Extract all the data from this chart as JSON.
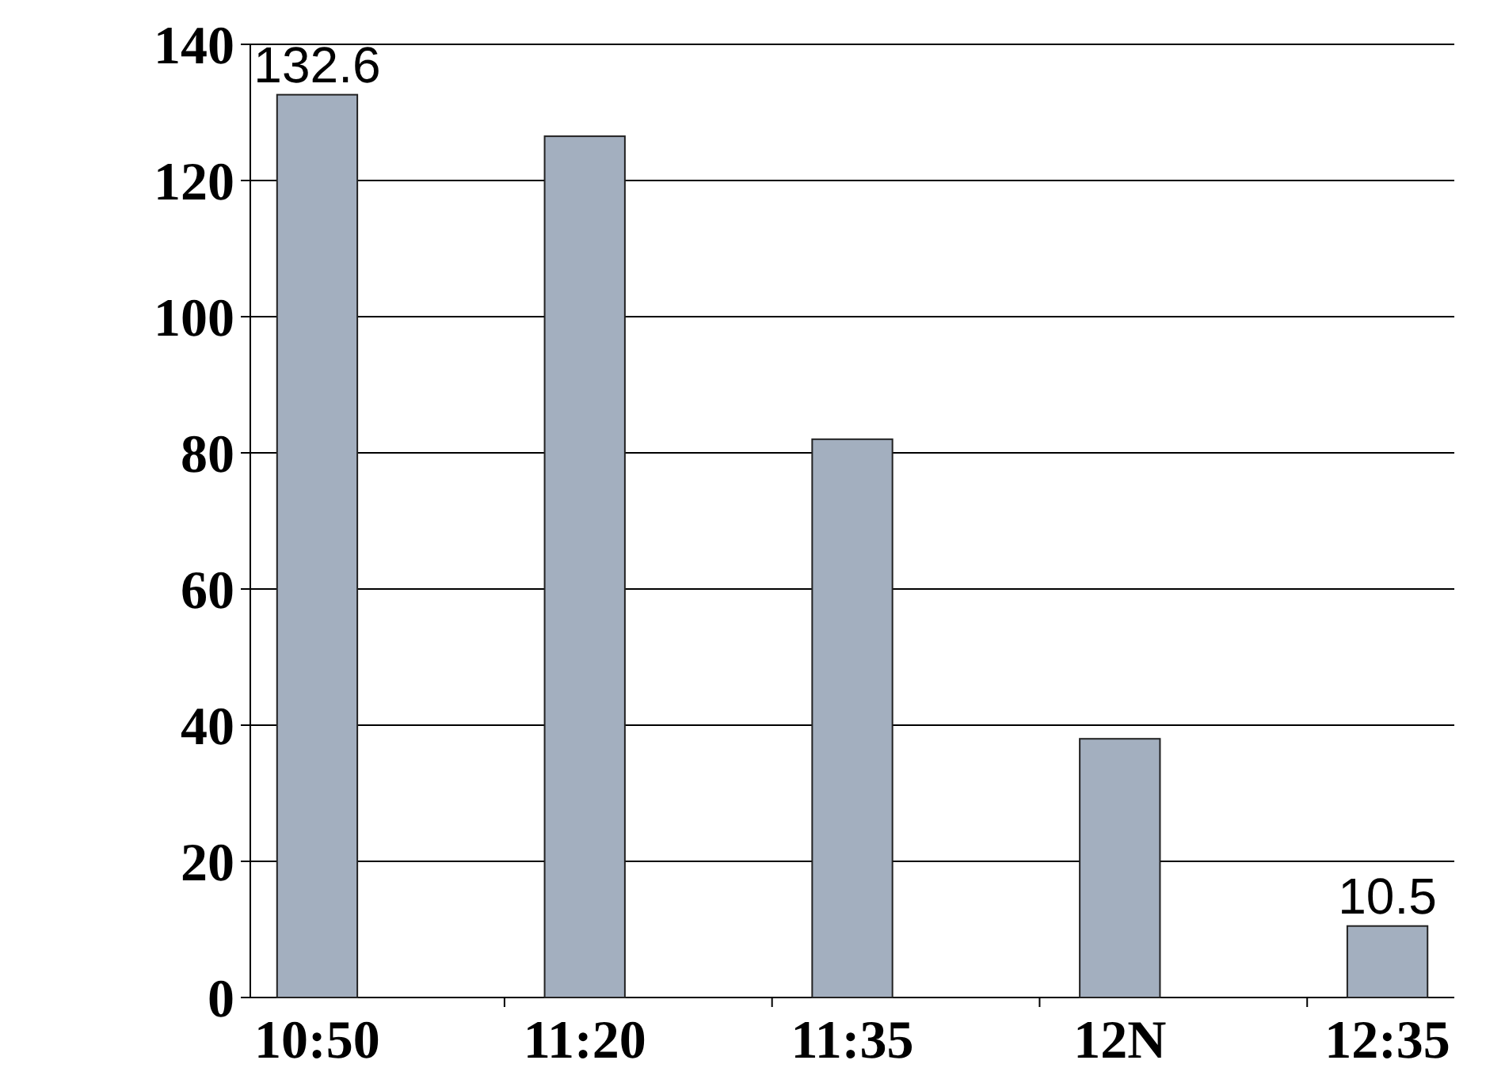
{
  "chart_data": {
    "type": "bar",
    "categories": [
      "10:50",
      "11:20",
      "11:35",
      "12N",
      "12:35"
    ],
    "values": [
      132.6,
      126.5,
      82,
      38,
      10.5
    ],
    "value_labels": [
      "132.6",
      null,
      null,
      null,
      "10.5"
    ],
    "color": "#a3afbf",
    "ylim": [
      0,
      140
    ],
    "yticks": [
      0,
      20,
      40,
      60,
      80,
      100,
      120,
      140
    ],
    "grid": "y"
  }
}
